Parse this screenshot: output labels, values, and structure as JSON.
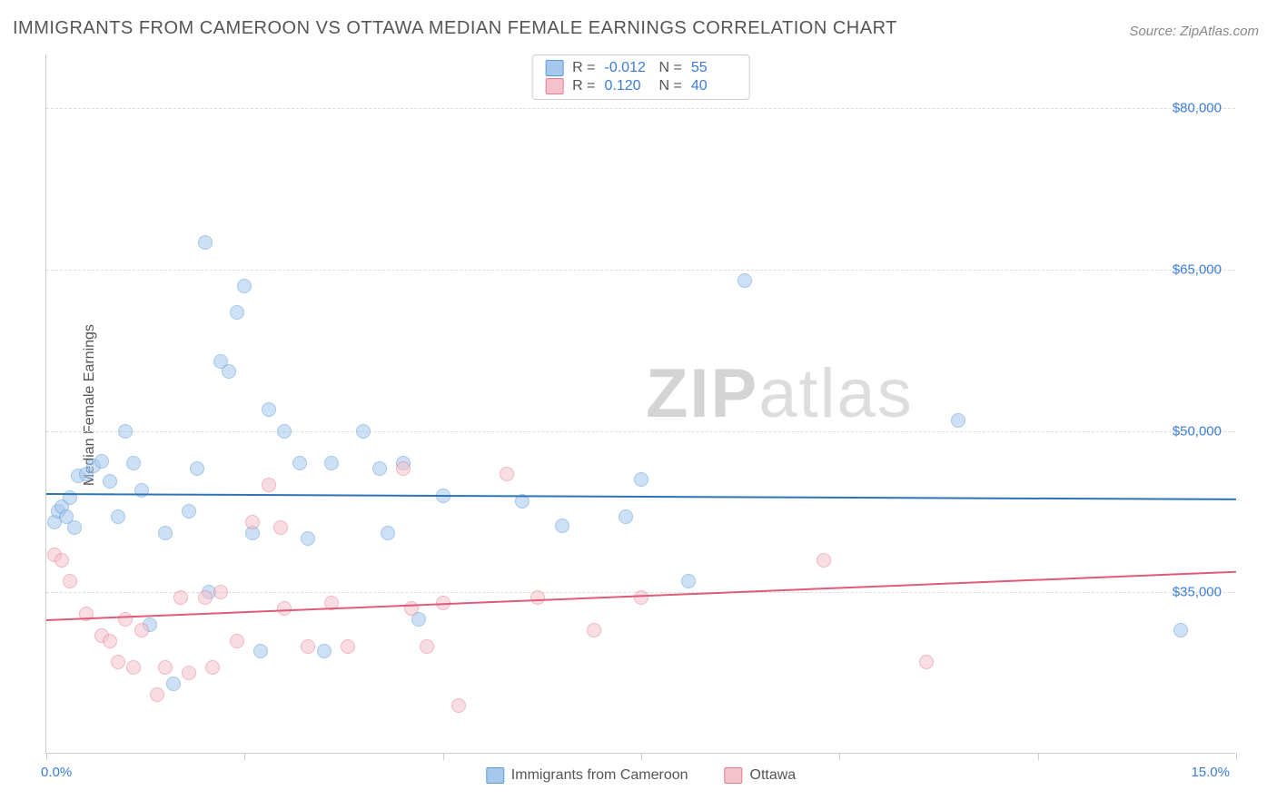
{
  "title": "IMMIGRANTS FROM CAMEROON VS OTTAWA MEDIAN FEMALE EARNINGS CORRELATION CHART",
  "source": "Source: ZipAtlas.com",
  "ylabel": "Median Female Earnings",
  "watermark_bold": "ZIP",
  "watermark_light": "atlas",
  "chart": {
    "type": "scatter",
    "xlim": [
      0,
      15
    ],
    "ylim": [
      20000,
      85000
    ],
    "x_ticks": [
      0,
      2.5,
      5,
      7.5,
      10,
      12.5,
      15
    ],
    "x_tick_labels_shown": {
      "0": "0.0%",
      "15": "15.0%"
    },
    "y_ticks": [
      35000,
      50000,
      65000,
      80000
    ],
    "y_tick_labels": [
      "$35,000",
      "$50,000",
      "$65,000",
      "$80,000"
    ],
    "background_color": "#ffffff",
    "grid_color": "#dddddd",
    "axis_color": "#cccccc",
    "ylabel_color": "#555555",
    "tick_label_color": "#3b7dd8",
    "marker_radius": 8,
    "marker_opacity": 0.55,
    "series": [
      {
        "name": "Immigrants from Cameroon",
        "fill_color": "#a6c8ed",
        "stroke_color": "#5b9bd5",
        "line_color": "#2e75b6",
        "r_value": "-0.012",
        "n_value": "55",
        "trend": {
          "y_at_x0": 44200,
          "y_at_xmax": 43700
        },
        "points": [
          [
            0.1,
            41500
          ],
          [
            0.15,
            42500
          ],
          [
            0.2,
            43000
          ],
          [
            0.25,
            42000
          ],
          [
            0.3,
            43800
          ],
          [
            0.35,
            41000
          ],
          [
            0.4,
            45800
          ],
          [
            0.5,
            46000
          ],
          [
            0.6,
            46800
          ],
          [
            0.7,
            47200
          ],
          [
            0.8,
            45300
          ],
          [
            0.9,
            42000
          ],
          [
            1.0,
            50000
          ],
          [
            1.1,
            47000
          ],
          [
            1.2,
            44500
          ],
          [
            1.3,
            32000
          ],
          [
            1.5,
            40500
          ],
          [
            1.6,
            26500
          ],
          [
            1.8,
            42500
          ],
          [
            1.9,
            46500
          ],
          [
            2.0,
            67500
          ],
          [
            2.05,
            35000
          ],
          [
            2.2,
            56500
          ],
          [
            2.3,
            55500
          ],
          [
            2.4,
            61000
          ],
          [
            2.5,
            63500
          ],
          [
            2.6,
            40500
          ],
          [
            2.7,
            29500
          ],
          [
            2.8,
            52000
          ],
          [
            3.0,
            50000
          ],
          [
            3.2,
            47000
          ],
          [
            3.3,
            40000
          ],
          [
            3.5,
            29500
          ],
          [
            3.6,
            47000
          ],
          [
            4.0,
            50000
          ],
          [
            4.2,
            46500
          ],
          [
            4.3,
            40500
          ],
          [
            4.5,
            47000
          ],
          [
            4.7,
            32500
          ],
          [
            5.0,
            44000
          ],
          [
            6.0,
            43500
          ],
          [
            6.5,
            41200
          ],
          [
            7.3,
            42000
          ],
          [
            7.5,
            45500
          ],
          [
            8.1,
            36000
          ],
          [
            8.8,
            64000
          ],
          [
            11.5,
            51000
          ],
          [
            14.3,
            31500
          ]
        ]
      },
      {
        "name": "Ottawa",
        "fill_color": "#f4c2cd",
        "stroke_color": "#e87b94",
        "line_color": "#e05a7a",
        "r_value": "0.120",
        "n_value": "40",
        "trend": {
          "y_at_x0": 32500,
          "y_at_xmax": 37000
        },
        "points": [
          [
            0.1,
            38500
          ],
          [
            0.2,
            38000
          ],
          [
            0.3,
            36000
          ],
          [
            0.5,
            33000
          ],
          [
            0.7,
            31000
          ],
          [
            0.8,
            30500
          ],
          [
            0.9,
            28500
          ],
          [
            1.0,
            32500
          ],
          [
            1.1,
            28000
          ],
          [
            1.2,
            31500
          ],
          [
            1.4,
            25500
          ],
          [
            1.5,
            28000
          ],
          [
            1.7,
            34500
          ],
          [
            1.8,
            27500
          ],
          [
            2.0,
            34500
          ],
          [
            2.1,
            28000
          ],
          [
            2.2,
            35000
          ],
          [
            2.4,
            30500
          ],
          [
            2.6,
            41500
          ],
          [
            2.8,
            45000
          ],
          [
            2.95,
            41000
          ],
          [
            3.0,
            33500
          ],
          [
            3.3,
            30000
          ],
          [
            3.6,
            34000
          ],
          [
            3.8,
            30000
          ],
          [
            4.5,
            46500
          ],
          [
            4.6,
            33500
          ],
          [
            4.8,
            30000
          ],
          [
            5.0,
            34000
          ],
          [
            5.2,
            24500
          ],
          [
            5.8,
            46000
          ],
          [
            6.2,
            34500
          ],
          [
            6.9,
            31500
          ],
          [
            7.5,
            34500
          ],
          [
            9.8,
            38000
          ],
          [
            11.1,
            28500
          ]
        ]
      }
    ]
  },
  "stats_legend": {
    "r_label": "R =",
    "n_label": "N ="
  }
}
